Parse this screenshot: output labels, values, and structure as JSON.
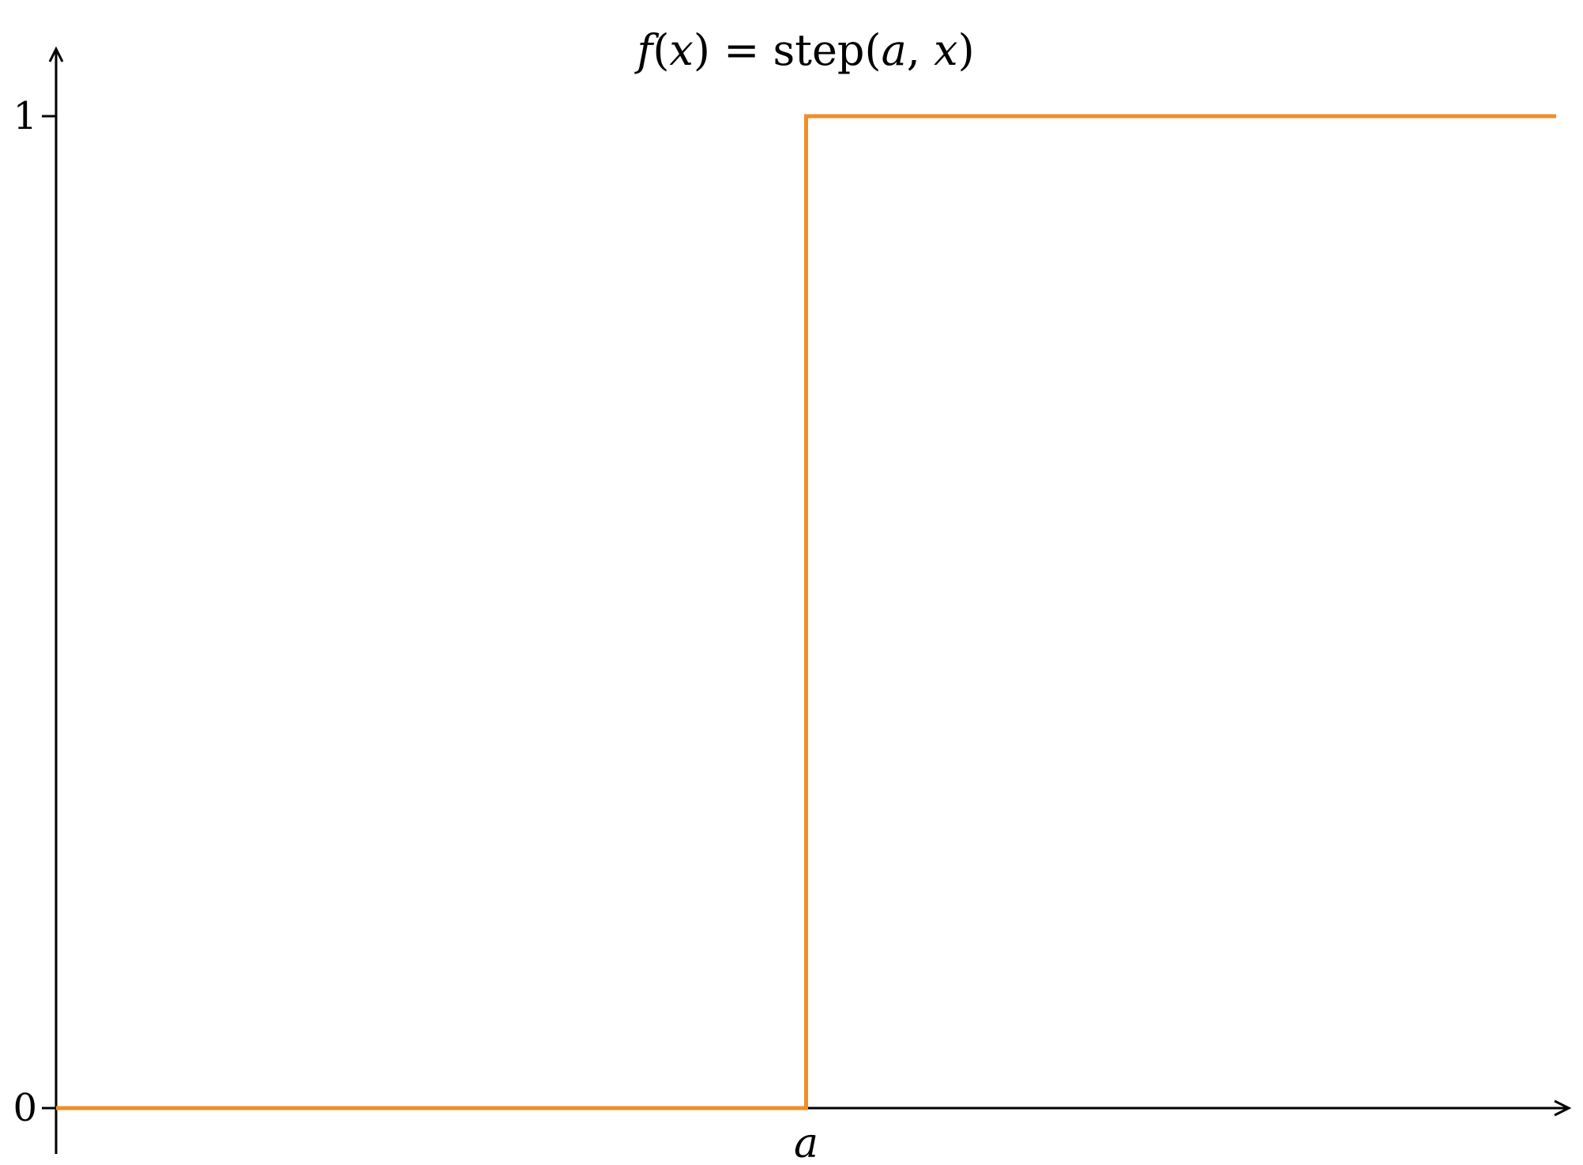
{
  "chart_data": {
    "type": "line",
    "title": {
      "f": "f",
      "open1": "(",
      "x1": "x",
      "close1": ")",
      "eq": " = step(",
      "a": "a",
      "comma": ", ",
      "x2": "x",
      "close2": ")"
    },
    "xlabel": "",
    "ylabel": "",
    "x_marker": {
      "label": "a",
      "value": 0
    },
    "xlim": [
      -1,
      1
    ],
    "ylim": [
      0,
      1
    ],
    "y_ticks": [
      {
        "value": 0,
        "label": "0"
      },
      {
        "value": 1,
        "label": "1"
      }
    ],
    "grid": false,
    "legend": "none",
    "series": [
      {
        "color": "#f28c28",
        "points": [
          {
            "x": -1,
            "y": 0
          },
          {
            "x": 0,
            "y": 0
          },
          {
            "x": 0,
            "y": 1
          },
          {
            "x": 1,
            "y": 1
          }
        ]
      }
    ],
    "axis_color": "#000000"
  }
}
